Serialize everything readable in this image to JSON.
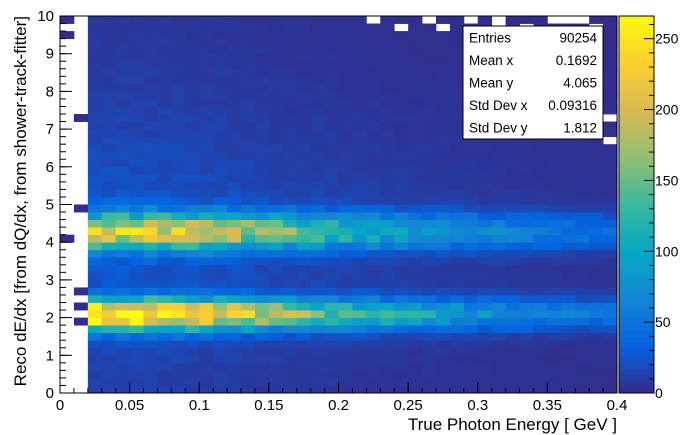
{
  "chart_data": {
    "type": "heatmap",
    "title": "",
    "xlabel": "True Photon Energy [ GeV ]",
    "ylabel": "Reco dE/dx [from dQ/dx, from shower-track-fitter]",
    "xlim": [
      0,
      0.4
    ],
    "ylim": [
      0,
      10
    ],
    "xbins": 40,
    "ybins": 50,
    "zlim": [
      0,
      266
    ],
    "x_tick_labels": [
      "0",
      "0.05",
      "0.1",
      "0.15",
      "0.2",
      "0.25",
      "0.3",
      "0.35",
      "0.4"
    ],
    "x_tick_values": [
      0,
      0.05,
      0.1,
      0.15,
      0.2,
      0.25,
      0.3,
      0.35,
      0.4
    ],
    "y_tick_labels": [
      "0",
      "1",
      "2",
      "3",
      "4",
      "5",
      "6",
      "7",
      "8",
      "9",
      "10"
    ],
    "y_tick_values": [
      0,
      1,
      2,
      3,
      4,
      5,
      6,
      7,
      8,
      9,
      10
    ],
    "palette_tick_labels": [
      "0",
      "50",
      "100",
      "150",
      "200",
      "250"
    ],
    "palette_tick_values": [
      0,
      50,
      100,
      150,
      200,
      250
    ],
    "palette": "kBird",
    "palette_colors": [
      "#352a87",
      "#0363e1",
      "#1485d4",
      "#06a7c6",
      "#38b99e",
      "#92bf73",
      "#d9ba56",
      "#fcce2e",
      "#f9fb0e"
    ],
    "distribution_model": {
      "bands": [
        {
          "y_center": 2.1,
          "y_sigma": 0.28,
          "peak_counts": 265,
          "x_peak": 0.075
        },
        {
          "y_center": 4.3,
          "y_sigma": 0.33,
          "peak_counts": 185,
          "x_peak": 0.11
        }
      ],
      "x_low_edge": 0.025
    },
    "stats_box": {
      "rows": [
        {
          "label": "Entries",
          "value": "90254"
        },
        {
          "label": "Mean x",
          "value": "0.1692"
        },
        {
          "label": "Mean y",
          "value": "4.065"
        },
        {
          "label": "Std Dev x",
          "value": "0.09316"
        },
        {
          "label": "Std Dev y",
          "value": "1.812"
        }
      ]
    }
  }
}
